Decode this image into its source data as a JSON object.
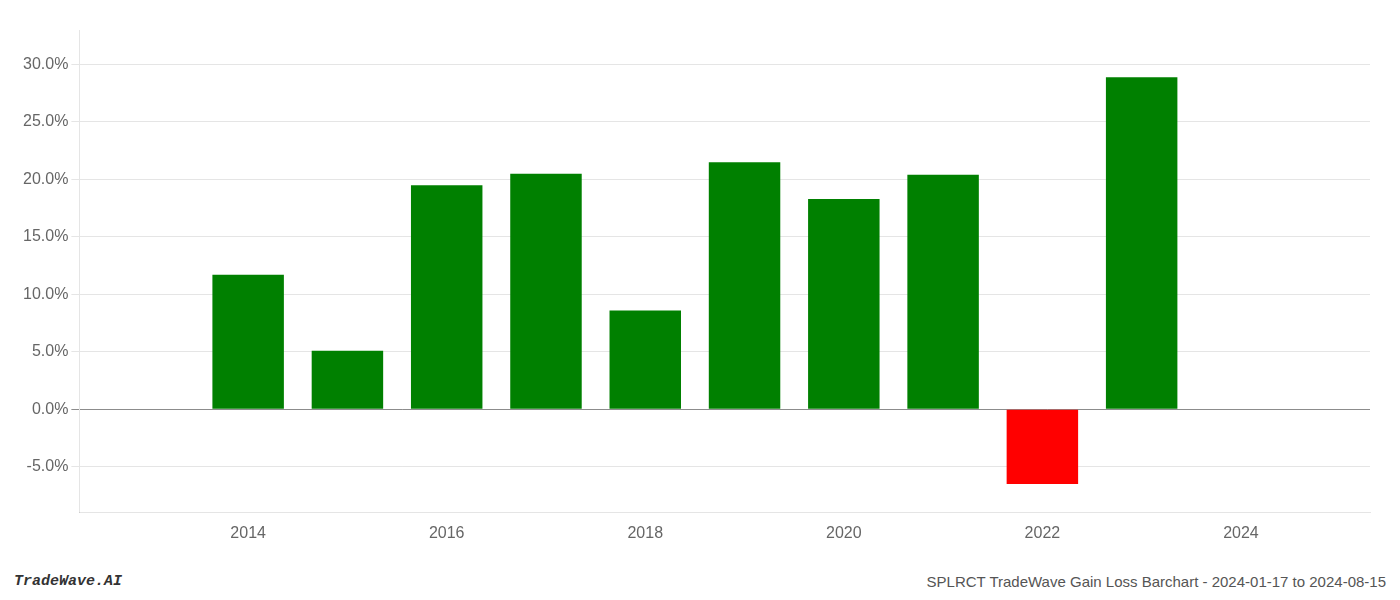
{
  "chart_data": {
    "type": "bar",
    "annotations": [
      "TradeWave.AI",
      "SPLRCT TradeWave Gain Loss Barchart - 2024-01-17 to 2024-08-15"
    ],
    "x": [
      2014,
      2015,
      2016,
      2017,
      2018,
      2019,
      2020,
      2021,
      2022,
      2023
    ],
    "values": [
      0.117,
      0.051,
      0.195,
      0.205,
      0.086,
      0.215,
      0.183,
      0.204,
      -0.065,
      0.289
    ],
    "colors": [
      "#008000",
      "#008000",
      "#008000",
      "#008000",
      "#008000",
      "#008000",
      "#008000",
      "#008000",
      "#ff0000",
      "#008000"
    ],
    "xlim": [
      2012.3,
      2025.3
    ],
    "xticks": [
      2014,
      2016,
      2018,
      2020,
      2022,
      2024
    ],
    "ylim": [
      -0.09,
      0.33
    ],
    "yticks": [
      {
        "value": -0.05,
        "label": "-5.0%"
      },
      {
        "value": 0.0,
        "label": "0.0%"
      },
      {
        "value": 0.05,
        "label": "5.0%"
      },
      {
        "value": 0.1,
        "label": "10.0%"
      },
      {
        "value": 0.15,
        "label": "15.0%"
      },
      {
        "value": 0.2,
        "label": "20.0%"
      },
      {
        "value": 0.25,
        "label": "25.0%"
      },
      {
        "value": 0.3,
        "label": "30.0%"
      }
    ],
    "grid": true
  }
}
